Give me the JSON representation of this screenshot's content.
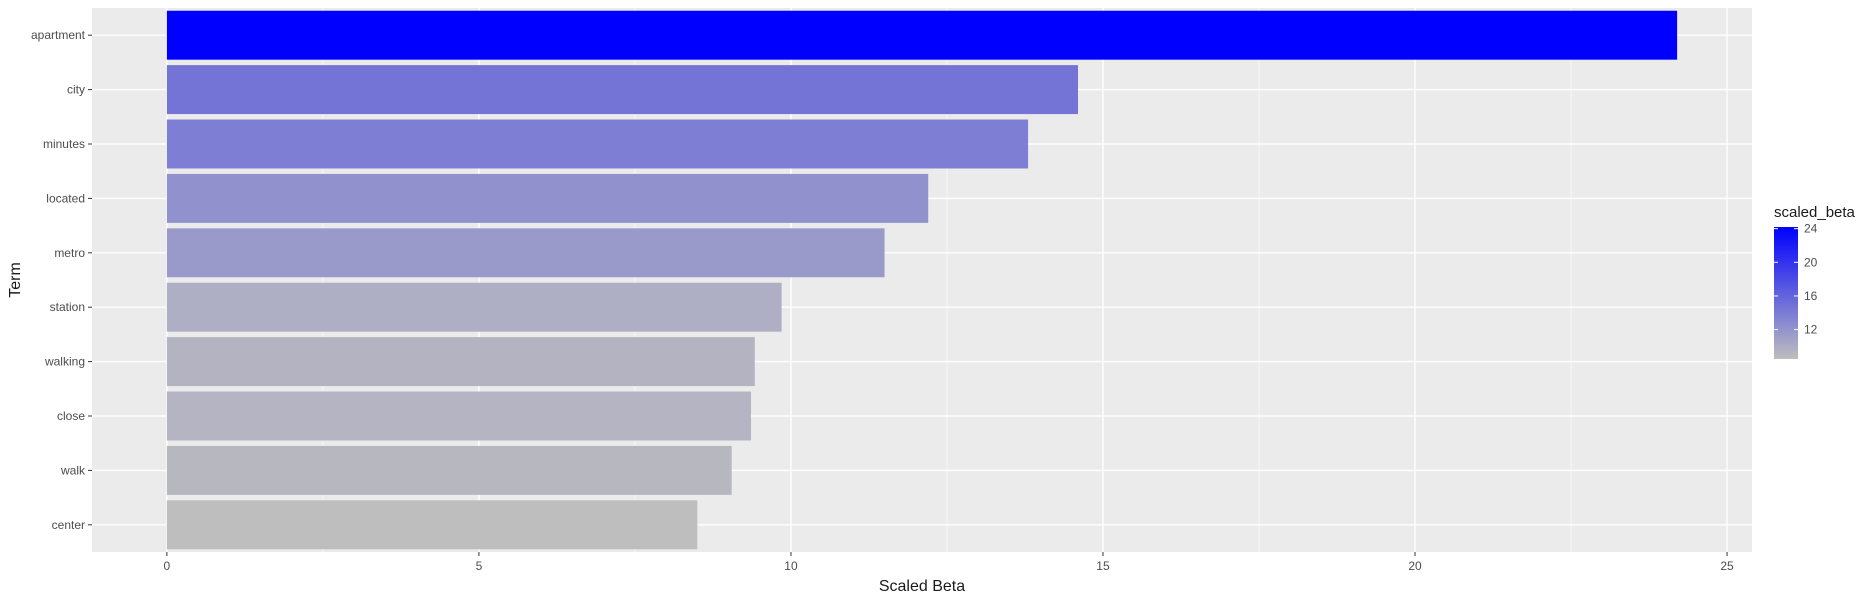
{
  "chart_data": {
    "type": "bar",
    "orientation": "horizontal",
    "categories": [
      "apartment",
      "city",
      "minutes",
      "located",
      "metro",
      "station",
      "walking",
      "close",
      "walk",
      "center"
    ],
    "values": [
      24.2,
      14.6,
      13.8,
      12.2,
      11.5,
      9.85,
      9.42,
      9.36,
      9.05,
      8.5
    ],
    "xlabel": "Scaled Beta",
    "ylabel": "Term",
    "xlim": [
      -1.2,
      25.4
    ],
    "x_ticks": [
      0,
      5,
      10,
      15,
      20,
      25
    ],
    "grid": true,
    "panel_background": "#ebebeb",
    "gridline_color": "#ffffff",
    "legend": {
      "title": "scaled_beta",
      "position": "right",
      "ticks": [
        12,
        16,
        20,
        24
      ],
      "range": [
        8.5,
        24.2
      ],
      "low_color": "#bebebe",
      "high_color": "#0000ff"
    }
  }
}
